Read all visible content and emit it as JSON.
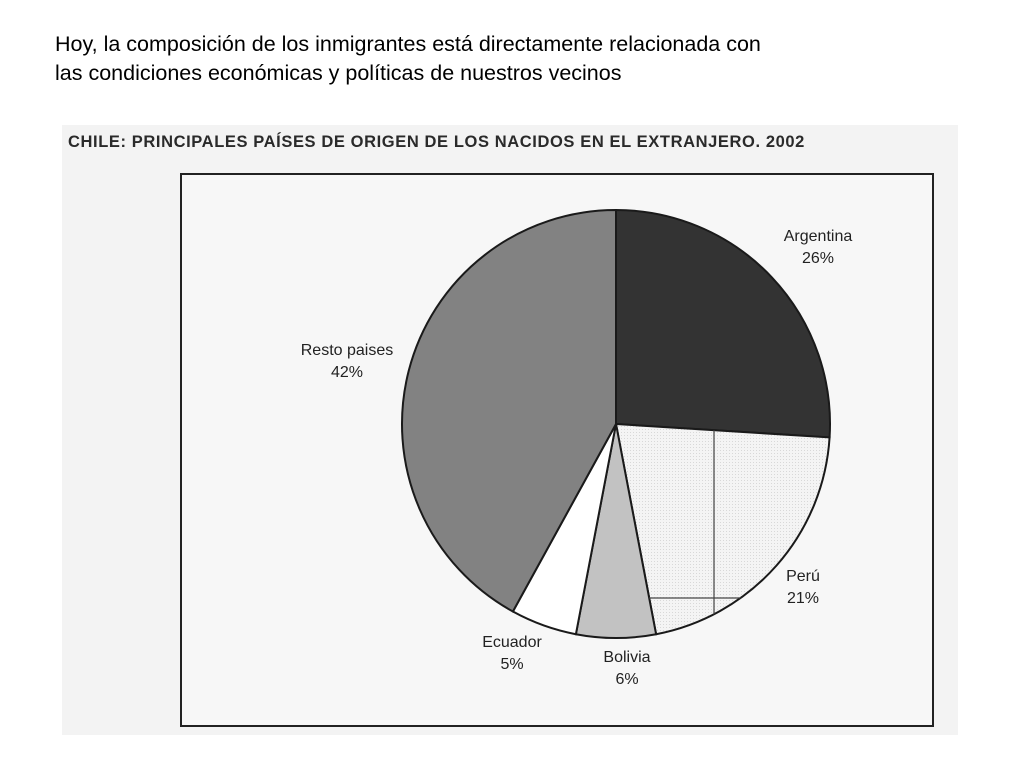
{
  "caption": {
    "line1": "Hoy, la composición de los inmigrantes está directamente relacionada con",
    "line2": "las condiciones económicas y políticas de nuestros vecinos"
  },
  "chart_data": {
    "type": "pie",
    "title": "CHILE: PRINCIPALES PAÍSES DE ORIGEN DE LOS NACIDOS EN EL EXTRANJERO. 2002",
    "unit": "%",
    "slices": [
      {
        "label": "Argentina",
        "value": 26,
        "value_label": "26%",
        "color": "#333333",
        "pattern": "solid"
      },
      {
        "label": "Perú",
        "value": 21,
        "value_label": "21%",
        "color": "#f4f4f4",
        "pattern": "grid"
      },
      {
        "label": "Bolivia",
        "value": 6,
        "value_label": "6%",
        "color": "#c2c2c2",
        "pattern": "solid"
      },
      {
        "label": "Ecuador",
        "value": 5,
        "value_label": "5%",
        "color": "#ffffff",
        "pattern": "solid"
      },
      {
        "label": "Resto paises",
        "value": 42,
        "value_label": "42%",
        "color": "#828282",
        "pattern": "solid"
      }
    ]
  }
}
